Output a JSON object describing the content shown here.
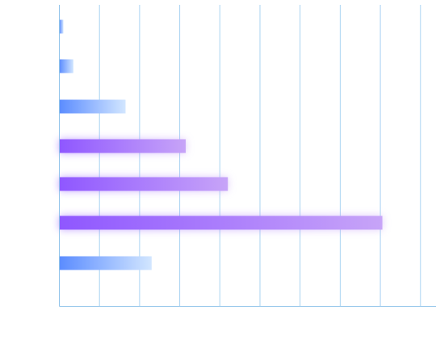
{
  "chart_data": {
    "type": "bar",
    "orientation": "horizontal",
    "title": "",
    "xlabel": "",
    "ylabel": "",
    "xlim": [
      0,
      9.4
    ],
    "grid": true,
    "tick_labels_visible": false,
    "bars": [
      {
        "value": 0.1,
        "style": "blue"
      },
      {
        "value": 0.35,
        "style": "blue"
      },
      {
        "value": 1.65,
        "style": "blue"
      },
      {
        "value": 3.15,
        "style": "purple"
      },
      {
        "value": 4.2,
        "style": "purple"
      },
      {
        "value": 8.05,
        "style": "purple"
      },
      {
        "value": 2.3,
        "style": "blue"
      }
    ],
    "colors": {
      "blue_start": "#5b8cff",
      "blue_end": "#d2e6ff",
      "purple_start": "#8f57ff",
      "purple_end": "#c7a4f8",
      "grid": "#a9d3f2",
      "axis": "#8fc3ea"
    }
  }
}
